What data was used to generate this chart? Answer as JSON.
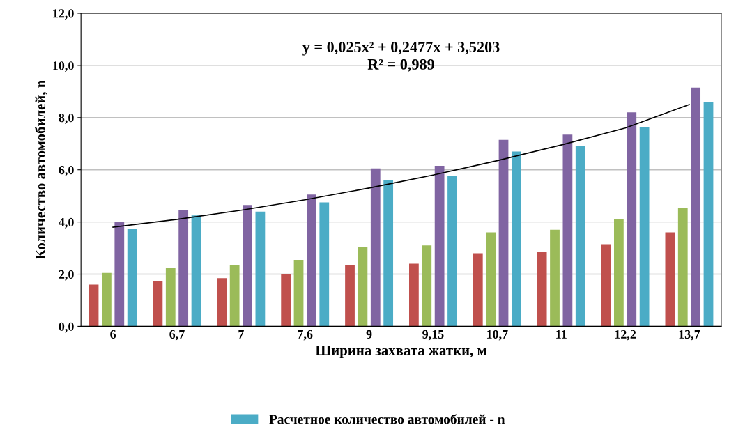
{
  "chart_data": {
    "type": "bar",
    "xlabel": "Ширина захвата жатки, м",
    "ylabel": "Количество автомобилей, n",
    "categories": [
      "6",
      "6,7",
      "7",
      "7,6",
      "9",
      "9,15",
      "10,7",
      "11",
      "12,2",
      "13,7"
    ],
    "series": [
      {
        "color": "#c0504d",
        "values": [
          1.6,
          1.75,
          1.85,
          2.0,
          2.35,
          2.4,
          2.8,
          2.85,
          3.15,
          3.6
        ]
      },
      {
        "color": "#9bbb59",
        "values": [
          2.05,
          2.25,
          2.35,
          2.55,
          3.05,
          3.1,
          3.6,
          3.7,
          4.1,
          4.55
        ]
      },
      {
        "color": "#8064a2",
        "values": [
          4.0,
          4.45,
          4.65,
          5.05,
          6.05,
          6.15,
          7.15,
          7.35,
          8.2,
          9.15
        ]
      },
      {
        "name": "Расчетное количество автомобилей - n",
        "color": "#4bacc6",
        "values": [
          3.75,
          4.25,
          4.4,
          4.75,
          5.6,
          5.75,
          6.7,
          6.9,
          7.65,
          8.6
        ]
      },
      {
        "type": "line",
        "color": "#000000",
        "x": [
          "6",
          "6,7",
          "7",
          "7,6",
          "9",
          "9,15",
          "10,7",
          "11",
          "12,2",
          "13,7"
        ],
        "values": [
          3.8,
          4.1,
          4.45,
          4.85,
          5.3,
          5.8,
          6.35,
          6.95,
          7.6,
          8.5
        ]
      }
    ],
    "ylim": [
      0,
      12
    ],
    "yticks": [
      {
        "value": 0,
        "label": "0,0"
      },
      {
        "value": 2,
        "label": "2,0"
      },
      {
        "value": 4,
        "label": "4,0"
      },
      {
        "value": 6,
        "label": "6,0"
      },
      {
        "value": 8,
        "label": "8,0"
      },
      {
        "value": 10,
        "label": "10,0"
      },
      {
        "value": 12,
        "label": "12,0"
      }
    ],
    "grid": "y",
    "legend": "bottom",
    "annotations": [
      "y = 0,025x² + 0,2477x + 3,5203\nR² = 0,989"
    ]
  }
}
